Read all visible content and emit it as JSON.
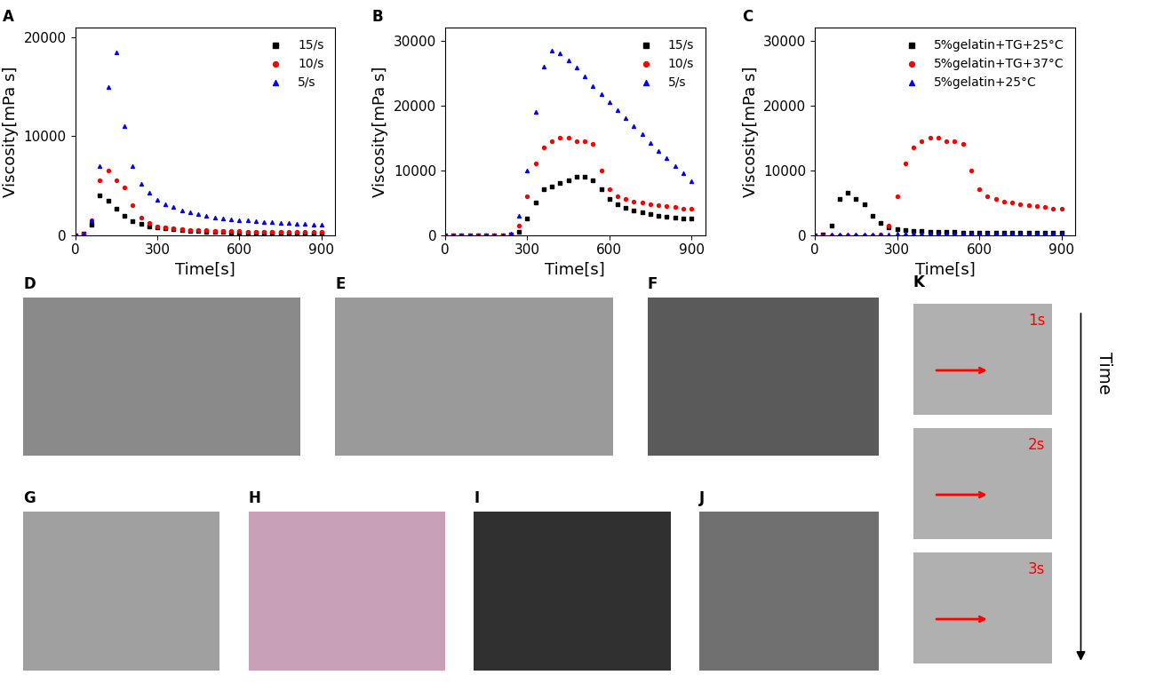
{
  "chart_data": [
    {
      "type": "scatter",
      "title": "A",
      "x_label": "Time[s]",
      "y_label": "Viscosity[mPa s]",
      "x": [
        0,
        30,
        60,
        90,
        120,
        150,
        180,
        210,
        240,
        270,
        300,
        330,
        360,
        390,
        420,
        450,
        480,
        510,
        540,
        570,
        600,
        630,
        660,
        690,
        720,
        750,
        780,
        810,
        840,
        870,
        900
      ],
      "series": [
        {
          "name": "15/s",
          "color": "#000000",
          "marker": "square",
          "values": [
            0,
            100,
            1000,
            4000,
            3500,
            2700,
            1900,
            1400,
            1100,
            900,
            750,
            650,
            550,
            480,
            420,
            380,
            340,
            300,
            280,
            260,
            240,
            230,
            220,
            210,
            200,
            190,
            180,
            170,
            165,
            160,
            150
          ]
        },
        {
          "name": "10/s",
          "color": "#ff0000",
          "marker": "circle",
          "values": [
            0,
            100,
            1500,
            5500,
            6500,
            5500,
            4800,
            3000,
            1800,
            1200,
            900,
            750,
            650,
            580,
            530,
            490,
            460,
            430,
            410,
            390,
            370,
            360,
            350,
            340,
            330,
            320,
            315,
            310,
            305,
            300,
            300
          ]
        },
        {
          "name": "5/s",
          "color": "#0000ff",
          "marker": "triangle",
          "values": [
            0,
            100,
            1500,
            7000,
            15000,
            18500,
            11000,
            7000,
            5200,
            4300,
            3600,
            3100,
            2800,
            2500,
            2300,
            2100,
            1900,
            1800,
            1700,
            1600,
            1500,
            1450,
            1400,
            1350,
            1300,
            1250,
            1200,
            1150,
            1100,
            1050,
            1000
          ]
        }
      ],
      "xlim": [
        0,
        950
      ],
      "xticks": [
        0,
        300,
        600,
        900
      ],
      "ylim": [
        0,
        21000
      ],
      "yticks": [
        0,
        10000,
        20000
      ],
      "legend": "upper right"
    },
    {
      "type": "scatter",
      "title": "B",
      "x_label": "Time[s]",
      "y_label": "Viscosity[mPa s]",
      "x": [
        0,
        30,
        60,
        90,
        120,
        150,
        180,
        210,
        240,
        270,
        300,
        330,
        360,
        390,
        420,
        450,
        480,
        510,
        540,
        570,
        600,
        630,
        660,
        690,
        720,
        750,
        780,
        810,
        840,
        870,
        900
      ],
      "series": [
        {
          "name": "15/s",
          "color": "#000000",
          "marker": "square",
          "values": [
            0,
            0,
            0,
            0,
            0,
            0,
            0,
            0,
            50,
            500,
            2500,
            5000,
            7000,
            7500,
            8000,
            8500,
            9000,
            9000,
            8500,
            7000,
            5500,
            4700,
            4200,
            3800,
            3500,
            3200,
            3000,
            2800,
            2700,
            2600,
            2500
          ]
        },
        {
          "name": "10/s",
          "color": "#ff0000",
          "marker": "circle",
          "values": [
            0,
            0,
            0,
            0,
            0,
            0,
            0,
            0,
            100,
            1500,
            6000,
            11000,
            13500,
            14500,
            15000,
            15000,
            14500,
            14500,
            14000,
            10000,
            7000,
            6000,
            5500,
            5200,
            5000,
            4800,
            4600,
            4400,
            4300,
            4100,
            4000
          ]
        },
        {
          "name": "5/s",
          "color": "#0000ff",
          "marker": "triangle",
          "values": [
            0,
            0,
            0,
            0,
            0,
            0,
            0,
            0,
            200,
            3000,
            10000,
            19000,
            26000,
            28500,
            28000,
            27000,
            25800,
            24500,
            23000,
            21800,
            20500,
            19300,
            18000,
            16800,
            15500,
            14200,
            13000,
            11800,
            10600,
            9500,
            8300
          ]
        }
      ],
      "xlim": [
        0,
        950
      ],
      "xticks": [
        0,
        300,
        600,
        900
      ],
      "ylim": [
        0,
        32000
      ],
      "yticks": [
        0,
        10000,
        20000,
        30000
      ],
      "legend": "upper right"
    },
    {
      "type": "scatter",
      "title": "C",
      "x_label": "Time[s]",
      "y_label": "Viscosity[mPa s]",
      "x": [
        0,
        30,
        60,
        90,
        120,
        150,
        180,
        210,
        240,
        270,
        300,
        330,
        360,
        390,
        420,
        450,
        480,
        510,
        540,
        570,
        600,
        630,
        660,
        690,
        720,
        750,
        780,
        810,
        840,
        870,
        900
      ],
      "series": [
        {
          "name": "5%gelatin+TG+25°C",
          "color": "#000000",
          "marker": "square",
          "values": [
            0,
            100,
            1500,
            5500,
            6500,
            5500,
            4800,
            3000,
            1800,
            1200,
            900,
            750,
            650,
            580,
            530,
            490,
            460,
            430,
            410,
            390,
            370,
            360,
            350,
            340,
            330,
            320,
            315,
            310,
            305,
            300,
            300
          ]
        },
        {
          "name": "5%gelatin+TG+37°C",
          "color": "#ff0000",
          "marker": "circle",
          "values": [
            0,
            0,
            0,
            0,
            0,
            0,
            0,
            0,
            100,
            1500,
            6000,
            11000,
            13500,
            14500,
            15000,
            15000,
            14500,
            14500,
            14000,
            10000,
            7000,
            6000,
            5500,
            5200,
            5000,
            4800,
            4600,
            4400,
            4300,
            4100,
            4000
          ]
        },
        {
          "name": "5%gelatin+25°C",
          "color": "#0000ff",
          "marker": "triangle",
          "values": [
            0,
            0,
            50,
            80,
            100,
            100,
            120,
            120,
            130,
            130,
            140,
            140,
            150,
            150,
            150,
            160,
            160,
            160,
            170,
            170,
            170,
            180,
            180,
            180,
            190,
            190,
            190,
            200,
            200,
            200,
            200
          ]
        }
      ],
      "xlim": [
        0,
        950
      ],
      "xticks": [
        0,
        300,
        600,
        900
      ],
      "ylim": [
        0,
        32000
      ],
      "yticks": [
        0,
        10000,
        20000,
        30000
      ],
      "legend": "upper right"
    }
  ],
  "photo_panels": {
    "labels": [
      "D",
      "E",
      "F",
      "G",
      "H",
      "I",
      "J",
      "K"
    ],
    "time_labels": [
      "1s",
      "2s",
      "3s"
    ],
    "time_axis": "Time"
  }
}
